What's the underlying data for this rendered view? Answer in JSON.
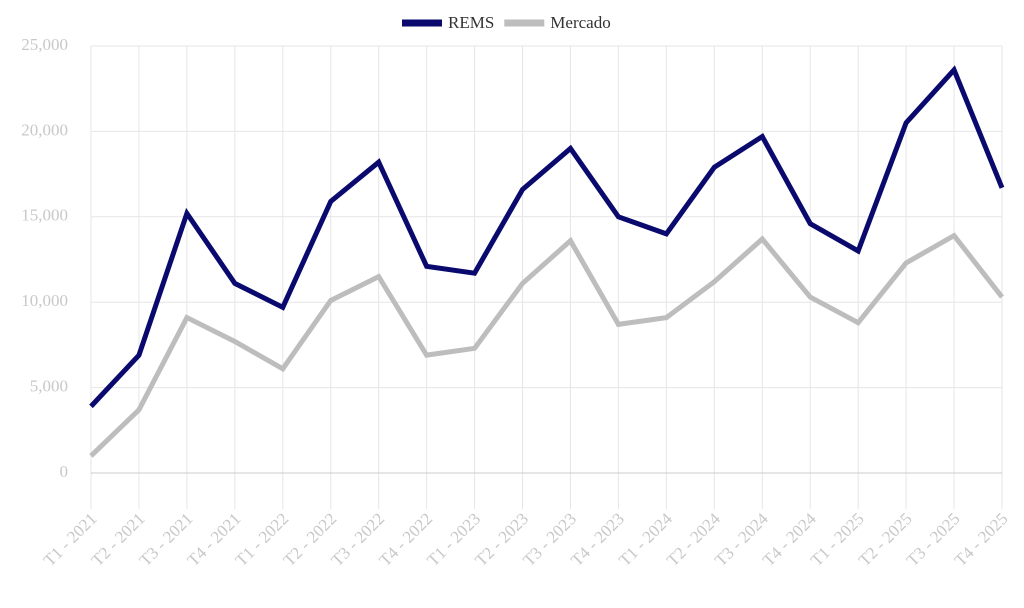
{
  "chart_data": {
    "type": "line",
    "categories": [
      "T1 - 2021",
      "T2 - 2021",
      "T3 - 2021",
      "T4 - 2021",
      "T1 - 2022",
      "T2 - 2022",
      "T3 - 2022",
      "T4 - 2022",
      "T1 - 2023",
      "T2 - 2023",
      "T3 - 2023",
      "T4 - 2023",
      "T1 - 2024",
      "T2 - 2024",
      "T3 - 2024",
      "T4 - 2024",
      "T1 - 2025",
      "T2 - 2025",
      "T3 - 2025",
      "T4 - 2025"
    ],
    "series": [
      {
        "name": "REMS",
        "color": "#0a0a6e",
        "values": [
          3900,
          6900,
          15200,
          11100,
          9700,
          15900,
          18200,
          12100,
          11700,
          16600,
          19000,
          15000,
          14000,
          17900,
          19700,
          14600,
          13000,
          20500,
          23600,
          16700
        ]
      },
      {
        "name": "Mercado",
        "color": "#bdbdbd",
        "values": [
          1000,
          3700,
          9100,
          7700,
          6100,
          10100,
          11500,
          6900,
          7300,
          11100,
          13600,
          8700,
          9100,
          11200,
          13700,
          10300,
          8800,
          12300,
          13900,
          10300
        ]
      }
    ],
    "ylim": [
      0,
      25000
    ],
    "yticks": [
      0,
      {
        "value": 5000,
        "label": "5,000"
      },
      {
        "value": 10000,
        "label": "10,000"
      },
      {
        "value": 15000,
        "label": "15,000"
      },
      {
        "value": 20000,
        "label": "20,000"
      },
      {
        "value": 25000,
        "label": "25,000"
      }
    ],
    "grid": true,
    "legend": "top"
  }
}
